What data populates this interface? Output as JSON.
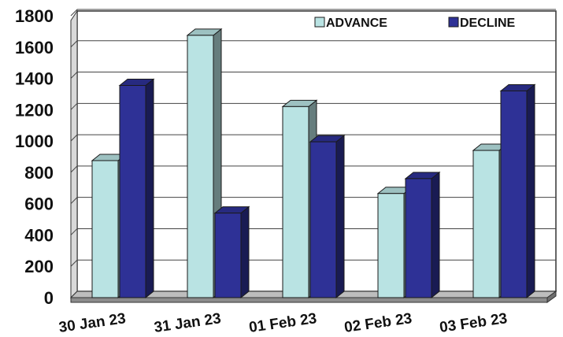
{
  "chart_data": {
    "type": "bar",
    "categories": [
      "30 Jan 23",
      "31 Jan 23",
      "01 Feb 23",
      "02 Feb 23",
      "03 Feb 23"
    ],
    "series": [
      {
        "name": "ADVANCE",
        "values": [
          875,
          1675,
          1220,
          665,
          940
        ],
        "color": "#b9e3e3"
      },
      {
        "name": "DECLINE",
        "values": [
          1355,
          540,
          995,
          760,
          1320
        ],
        "color": "#2e3196"
      }
    ],
    "ylim": [
      0,
      1800
    ],
    "yticks": [
      "0",
      "200",
      "400",
      "600",
      "800",
      "1000",
      "1200",
      "1400",
      "1600",
      "1800"
    ],
    "grid": true,
    "legend_position": "top-right",
    "style": "3d-column"
  }
}
